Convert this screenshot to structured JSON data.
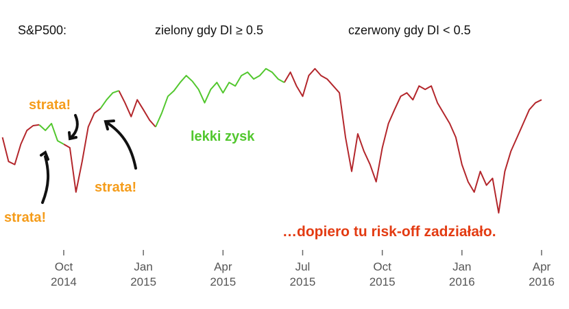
{
  "chart_data": {
    "type": "line",
    "title": "S&P500:",
    "notes": [
      "zielony gdy DI ≥ 0.5",
      "czerwony gdy DI < 0.5"
    ],
    "annotations": [
      "strata!",
      "strata!",
      "strata!",
      "lekki zysk",
      "…dopiero tu risk-off zadziałało."
    ],
    "categories": [
      null,
      null,
      null,
      null,
      null,
      null,
      null,
      null,
      null,
      null,
      "Oct\n2014",
      null,
      null,
      null,
      null,
      null,
      null,
      null,
      null,
      null,
      null,
      null,
      null,
      "Jan\n2015",
      null,
      null,
      null,
      null,
      null,
      null,
      null,
      null,
      null,
      null,
      null,
      null,
      "Apr\n2015",
      null,
      null,
      null,
      null,
      null,
      null,
      null,
      null,
      null,
      null,
      null,
      null,
      "Jul\n2015",
      null,
      null,
      null,
      null,
      null,
      null,
      null,
      null,
      null,
      null,
      null,
      null,
      "Oct\n2015",
      null,
      null,
      null,
      null,
      null,
      null,
      null,
      null,
      null,
      null,
      null,
      null,
      "Jan\n2016",
      null,
      null,
      null,
      null,
      null,
      null,
      null,
      null,
      null,
      null,
      null,
      null,
      "Apr\n2016"
    ],
    "ylim": [
      1800,
      2150
    ],
    "series": [
      {
        "color": "#b3262b",
        "values": [
          1983,
          1927,
          1920,
          1967,
          1999,
          2010,
          2012,
          null,
          null,
          null,
          1967,
          1959,
          1856,
          1927,
          2007,
          2039,
          2050,
          null,
          null,
          2091,
          2063,
          2031,
          2070,
          2047,
          2023,
          2007,
          null,
          null,
          null,
          null,
          null,
          null,
          null,
          null,
          null,
          null,
          null,
          null,
          null,
          null,
          null,
          null,
          null,
          null,
          null,
          null,
          2110,
          2134,
          2102,
          2078,
          2126,
          2142,
          2126,
          2118,
          2102,
          2086,
          1983,
          1904,
          1991,
          1951,
          1920,
          1880,
          1959,
          2015,
          2047,
          2078,
          2086,
          2070,
          2102,
          2094,
          2102,
          2063,
          2039,
          2015,
          1983,
          1920,
          1880,
          1856,
          1904,
          1872,
          1888,
          1808,
          1904,
          1951,
          1983,
          2015,
          2047,
          2063,
          2070
        ]
      },
      {
        "color": "#52c72e",
        "values": [
          null,
          null,
          null,
          null,
          null,
          null,
          2012,
          1999,
          2015,
          1975,
          1967,
          null,
          null,
          null,
          null,
          null,
          2050,
          2070,
          2086,
          2091,
          null,
          null,
          null,
          null,
          null,
          2007,
          2039,
          2078,
          2091,
          2110,
          2126,
          2113,
          2094,
          2063,
          2094,
          2110,
          2086,
          2110,
          2102,
          2126,
          2134,
          2118,
          2126,
          2142,
          2134,
          2118,
          2110,
          null,
          null,
          null,
          null,
          null,
          null,
          null,
          null,
          null,
          null,
          null,
          null,
          null,
          null,
          null,
          null,
          null,
          null,
          null,
          null,
          null,
          null,
          null,
          null,
          null,
          null,
          null,
          null,
          null,
          null,
          null,
          null,
          null,
          null,
          null,
          null,
          null,
          null,
          null,
          null,
          null,
          null
        ]
      }
    ]
  }
}
